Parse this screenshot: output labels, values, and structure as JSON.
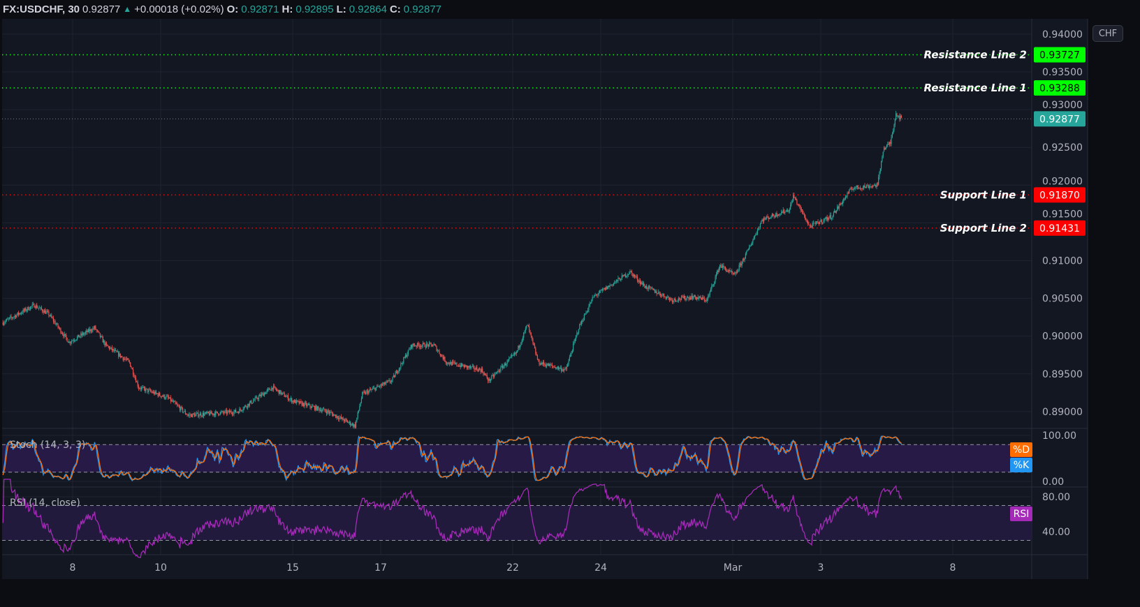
{
  "legend": {
    "symbol": "FX:USDCHF, 30",
    "last": "0.92877",
    "change": "+0.00018 (+0.02%)",
    "open_label": "O:",
    "open": "0.92871",
    "high_label": "H:",
    "high": "0.92895",
    "low_label": "L:",
    "low": "0.92864",
    "close_label": "C:",
    "close": "0.92877",
    "direction_icon": "triangle-up-icon"
  },
  "currency_button": "CHF",
  "colors": {
    "background": "#131722",
    "up": "#26a69a",
    "down": "#ef5350",
    "resistance": "#00ff00",
    "support": "#ff0000",
    "last_price": "#26a69a",
    "stoch_k": "#2196f3",
    "stoch_d": "#ff6d00",
    "rsi": "#a52ab8"
  },
  "horizontal_lines": [
    {
      "label": "Resistance Line 2",
      "price": "0.93727",
      "kind": "resistance"
    },
    {
      "label": "Resistance Line 1",
      "price": "0.93288",
      "kind": "resistance"
    },
    {
      "label": "Support Line 1",
      "price": "0.91870",
      "kind": "support"
    },
    {
      "label": "Support Line 2",
      "price": "0.91431",
      "kind": "support"
    }
  ],
  "last_price_tag": "0.92877",
  "price_axis": [
    "0.94000",
    "0.93500",
    "0.93000",
    "0.92500",
    "0.92000",
    "0.91500",
    "0.91000",
    "0.90500",
    "0.90000",
    "0.89500",
    "0.89000"
  ],
  "time_axis": [
    "8",
    "10",
    "15",
    "17",
    "22",
    "24",
    "Mar",
    "3",
    "8"
  ],
  "stoch": {
    "title": "Stoch (14, 3, 3)",
    "axis": [
      "100.00",
      "0.00"
    ],
    "tag_d": "%D",
    "tag_k": "%K",
    "bands": [
      80,
      20
    ]
  },
  "rsi": {
    "title": "RSI (14, close)",
    "axis": [
      "80.00",
      "40.00"
    ],
    "tag": "RSI",
    "bands": [
      70,
      30
    ]
  },
  "chart_data": {
    "type": "candlestick",
    "interval": "30",
    "price_path": [
      [
        "Feb 4 10:00",
        0.9018
      ],
      [
        "Feb 7 03:00",
        0.9041
      ],
      [
        "Feb 7 11:00",
        0.9029
      ],
      [
        "Feb 7 22:00",
        0.8992
      ],
      [
        "Feb 8 12:00",
        0.9011
      ],
      [
        "Feb 8 18:00",
        0.8988
      ],
      [
        "Feb 9 07:00",
        0.8965
      ],
      [
        "Feb 9 12:00",
        0.8932
      ],
      [
        "Feb 10 04:00",
        0.8918
      ],
      [
        "Feb 10 15:00",
        0.8895
      ],
      [
        "Feb 11 18:00",
        0.89
      ],
      [
        "Feb 14 13:00",
        0.8932
      ],
      [
        "Feb 15 00:00",
        0.8914
      ],
      [
        "Feb 15 19:00",
        0.89
      ],
      [
        "Feb 16 10:00",
        0.8881
      ],
      [
        "Feb 16 14:00",
        0.8923
      ],
      [
        "Feb 17 06:00",
        0.8941
      ],
      [
        "Feb 17 17:00",
        0.8988
      ],
      [
        "Feb 18 05:00",
        0.8988
      ],
      [
        "Feb 18 12:00",
        0.8965
      ],
      [
        "Feb 21 07:00",
        0.8955
      ],
      [
        "Feb 21 11:00",
        0.8941
      ],
      [
        "Feb 22 02:00",
        0.8978
      ],
      [
        "Feb 22 08:00",
        0.9015
      ],
      [
        "Feb 22 14:00",
        0.8965
      ],
      [
        "Feb 23 05:00",
        0.8955
      ],
      [
        "Feb 23 12:00",
        0.9011
      ],
      [
        "Feb 23 20:00",
        0.9052
      ],
      [
        "Feb 24 16:00",
        0.9085
      ],
      [
        "Feb 25 00:00",
        0.9066
      ],
      [
        "Feb 25 15:00",
        0.9048
      ],
      [
        "Feb 28 02:00",
        0.9052
      ],
      [
        "Feb 28 10:00",
        0.9048
      ],
      [
        "Feb 28 17:00",
        0.9094
      ],
      [
        "Mar 1 01:00",
        0.908
      ],
      [
        "Mar 1 08:00",
        0.9112
      ],
      [
        "Mar 1 16:00",
        0.9154
      ],
      [
        "Mar 2 07:00",
        0.9168
      ],
      [
        "Mar 2 09:00",
        0.9186
      ],
      [
        "Mar 2 18:00",
        0.9145
      ],
      [
        "Mar 3 06:00",
        0.9159
      ],
      [
        "Mar 3 17:00",
        0.9196
      ],
      [
        "Mar 4 07:00",
        0.92
      ],
      [
        "Mar 4 10:00",
        0.9247
      ],
      [
        "Mar 4 14:00",
        0.9256
      ],
      [
        "Mar 4 17:00",
        0.9295
      ],
      [
        "Mar 4 20:00",
        0.92877
      ]
    ],
    "ylim": [
      0.8875,
      0.942
    ]
  }
}
